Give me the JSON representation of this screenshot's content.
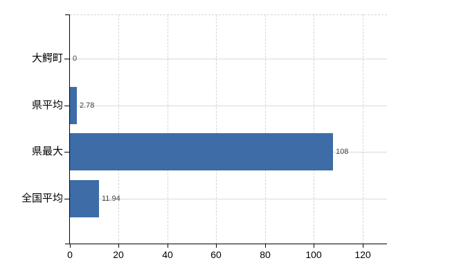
{
  "chart_data": {
    "type": "bar",
    "orientation": "horizontal",
    "title": "",
    "xlabel": "",
    "ylabel": "",
    "categories": [
      "大鰐町",
      "県平均",
      "県最大",
      "全国平均"
    ],
    "values": [
      0,
      2.78,
      108,
      11.94
    ],
    "value_labels": [
      "0",
      "2.78",
      "108",
      "11.94"
    ],
    "x_ticks": [
      0,
      20,
      40,
      60,
      80,
      100,
      120
    ],
    "xlim": [
      0,
      130
    ],
    "grid": "on",
    "legend": "none",
    "colors": {
      "bar": "#3e6ca7",
      "grid_solid": "#d9d9d9",
      "grid_dashed": "#d4d4d4",
      "axis": "#000000",
      "category_label": "#000000",
      "tick_label": "#000000",
      "value_label": "#3f3f3f"
    }
  }
}
